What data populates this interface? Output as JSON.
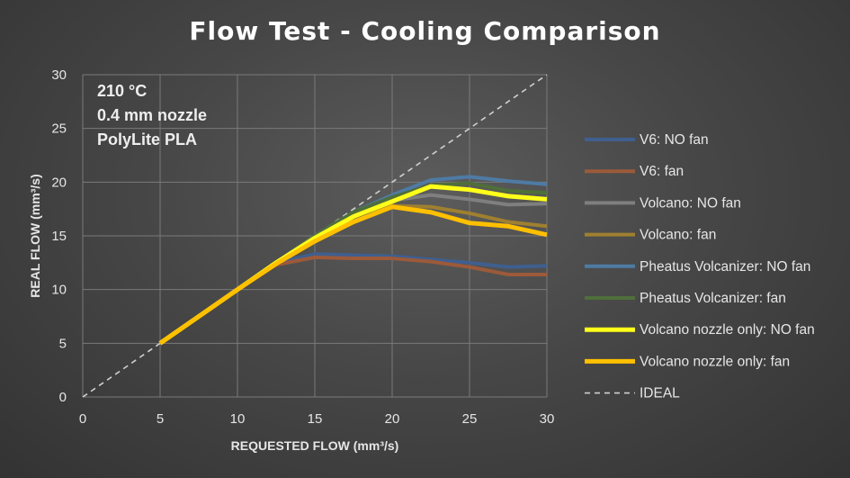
{
  "chart_data": {
    "type": "line",
    "title": "Flow Test - Cooling Comparison",
    "xlabel": "REQUESTED FLOW (mm³/s)",
    "ylabel": "REAL FLOW (mm³/s)",
    "xlim": [
      0,
      30
    ],
    "ylim": [
      0,
      30
    ],
    "xticks": [
      0,
      5,
      10,
      15,
      20,
      25,
      30
    ],
    "yticks": [
      0,
      5,
      10,
      15,
      20,
      25,
      30
    ],
    "grid": true,
    "legend_position": "right",
    "annotations": [
      "210 °C",
      "0.4 mm nozzle",
      "PolyLite PLA"
    ],
    "series": [
      {
        "name": "V6: NO fan",
        "color": "#3f5f8f",
        "width": 4,
        "x": [
          5,
          10,
          12.5,
          15,
          17.5,
          20,
          22.5,
          25,
          27.5,
          30
        ],
        "y": [
          5,
          10,
          12.5,
          13.3,
          13.2,
          13.1,
          12.8,
          12.5,
          12.1,
          12.2
        ]
      },
      {
        "name": "V6: fan",
        "color": "#9c5a3a",
        "width": 4,
        "x": [
          5,
          10,
          12.5,
          15,
          17.5,
          20,
          22.5,
          25,
          27.5,
          30
        ],
        "y": [
          5,
          10,
          12.3,
          13.0,
          12.9,
          12.9,
          12.6,
          12.1,
          11.4,
          11.4
        ]
      },
      {
        "name": "Volcano: NO fan",
        "color": "#7f7f7f",
        "width": 4,
        "x": [
          5,
          10,
          12.5,
          15,
          17.5,
          20,
          22.5,
          25,
          27.5,
          30
        ],
        "y": [
          5,
          10,
          12.5,
          15,
          17.2,
          18.3,
          18.8,
          18.4,
          17.9,
          18.0
        ]
      },
      {
        "name": "Volcano: fan",
        "color": "#9e8030",
        "width": 4,
        "x": [
          5,
          10,
          12.5,
          15,
          17.5,
          20,
          22.5,
          25,
          27.5,
          30
        ],
        "y": [
          5,
          10,
          12.5,
          15,
          17.0,
          17.8,
          17.7,
          17.1,
          16.3,
          15.9
        ]
      },
      {
        "name": "Pheatus Volcanizer: NO fan",
        "color": "#4e7ba4",
        "width": 4,
        "x": [
          5,
          10,
          12.5,
          15,
          17.5,
          20,
          22.5,
          25,
          27.5,
          30
        ],
        "y": [
          5,
          10,
          12.5,
          15,
          17.2,
          18.8,
          20.2,
          20.5,
          20.1,
          19.8
        ]
      },
      {
        "name": "Pheatus Volcanizer: fan",
        "color": "#4f6f3a",
        "width": 4,
        "x": [
          5,
          10,
          12.5,
          15,
          17.5,
          20,
          22.5,
          25,
          27.5,
          30
        ],
        "y": [
          5,
          10,
          12.5,
          15,
          17.2,
          18.6,
          19.7,
          19.9,
          19.2,
          19.0
        ]
      },
      {
        "name": "Volcano nozzle only: NO fan",
        "color": "#ffff1a",
        "width": 5,
        "x": [
          5,
          10,
          12.5,
          15,
          17.5,
          20,
          22.5,
          25,
          27.5,
          30
        ],
        "y": [
          5,
          10,
          12.5,
          14.8,
          16.8,
          18.2,
          19.6,
          19.3,
          18.7,
          18.4
        ]
      },
      {
        "name": "Volcano nozzle only: fan",
        "color": "#ffc000",
        "width": 5,
        "x": [
          5,
          10,
          12.5,
          15,
          17.5,
          20,
          22.5,
          25,
          27.5,
          30
        ],
        "y": [
          5,
          10,
          12.4,
          14.5,
          16.3,
          17.7,
          17.2,
          16.2,
          15.9,
          15.1
        ]
      }
    ],
    "ideal": {
      "name": "IDEAL",
      "color": "#d0d0d0",
      "x": [
        0,
        30
      ],
      "y": [
        0,
        30
      ]
    }
  }
}
